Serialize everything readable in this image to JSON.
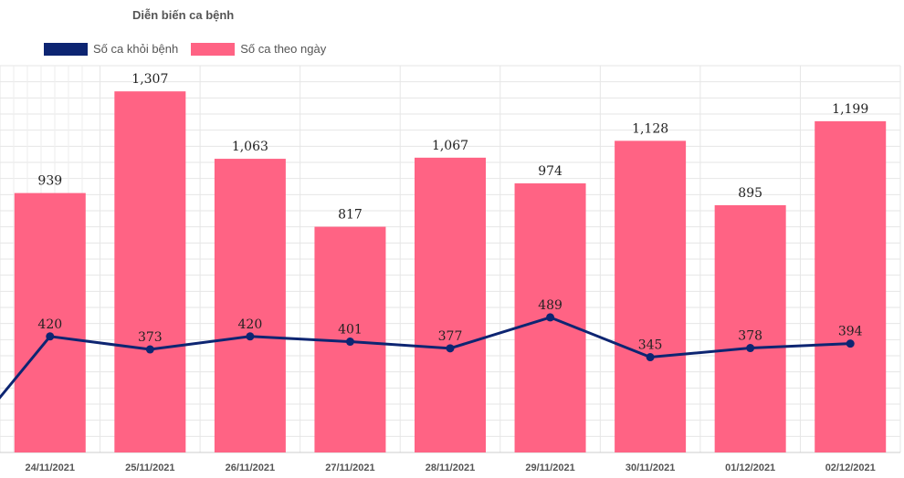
{
  "chart_data": {
    "type": "bar",
    "title": "Diễn biến ca bệnh",
    "categories": [
      "24/11/2021",
      "25/11/2021",
      "26/11/2021",
      "27/11/2021",
      "28/11/2021",
      "29/11/2021",
      "30/11/2021",
      "01/12/2021",
      "02/12/2021"
    ],
    "series": [
      {
        "name": "Số ca theo ngày",
        "kind": "bar",
        "color": "#ff6384",
        "values": [
          939,
          1307,
          1063,
          817,
          1067,
          974,
          1128,
          895,
          1199
        ],
        "labels": [
          "939",
          "1,307",
          "1,063",
          "817",
          "1,067",
          "974",
          "1,128",
          "895",
          "1,199"
        ]
      },
      {
        "name": "Số ca khỏi bệnh",
        "kind": "line",
        "color": "#0d2572",
        "values": [
          420,
          373,
          420,
          401,
          377,
          489,
          345,
          378,
          394
        ],
        "labels": [
          "420",
          "373",
          "420",
          "401",
          "377",
          "489",
          "345",
          "378",
          "394"
        ]
      }
    ],
    "ylim": [
      0,
      1400
    ],
    "grid": true,
    "legend_position": "top-left"
  },
  "legend": [
    {
      "label": "Số ca khỏi bệnh",
      "color": "#0d2572"
    },
    {
      "label": "Số ca theo ngày",
      "color": "#ff6384"
    }
  ]
}
